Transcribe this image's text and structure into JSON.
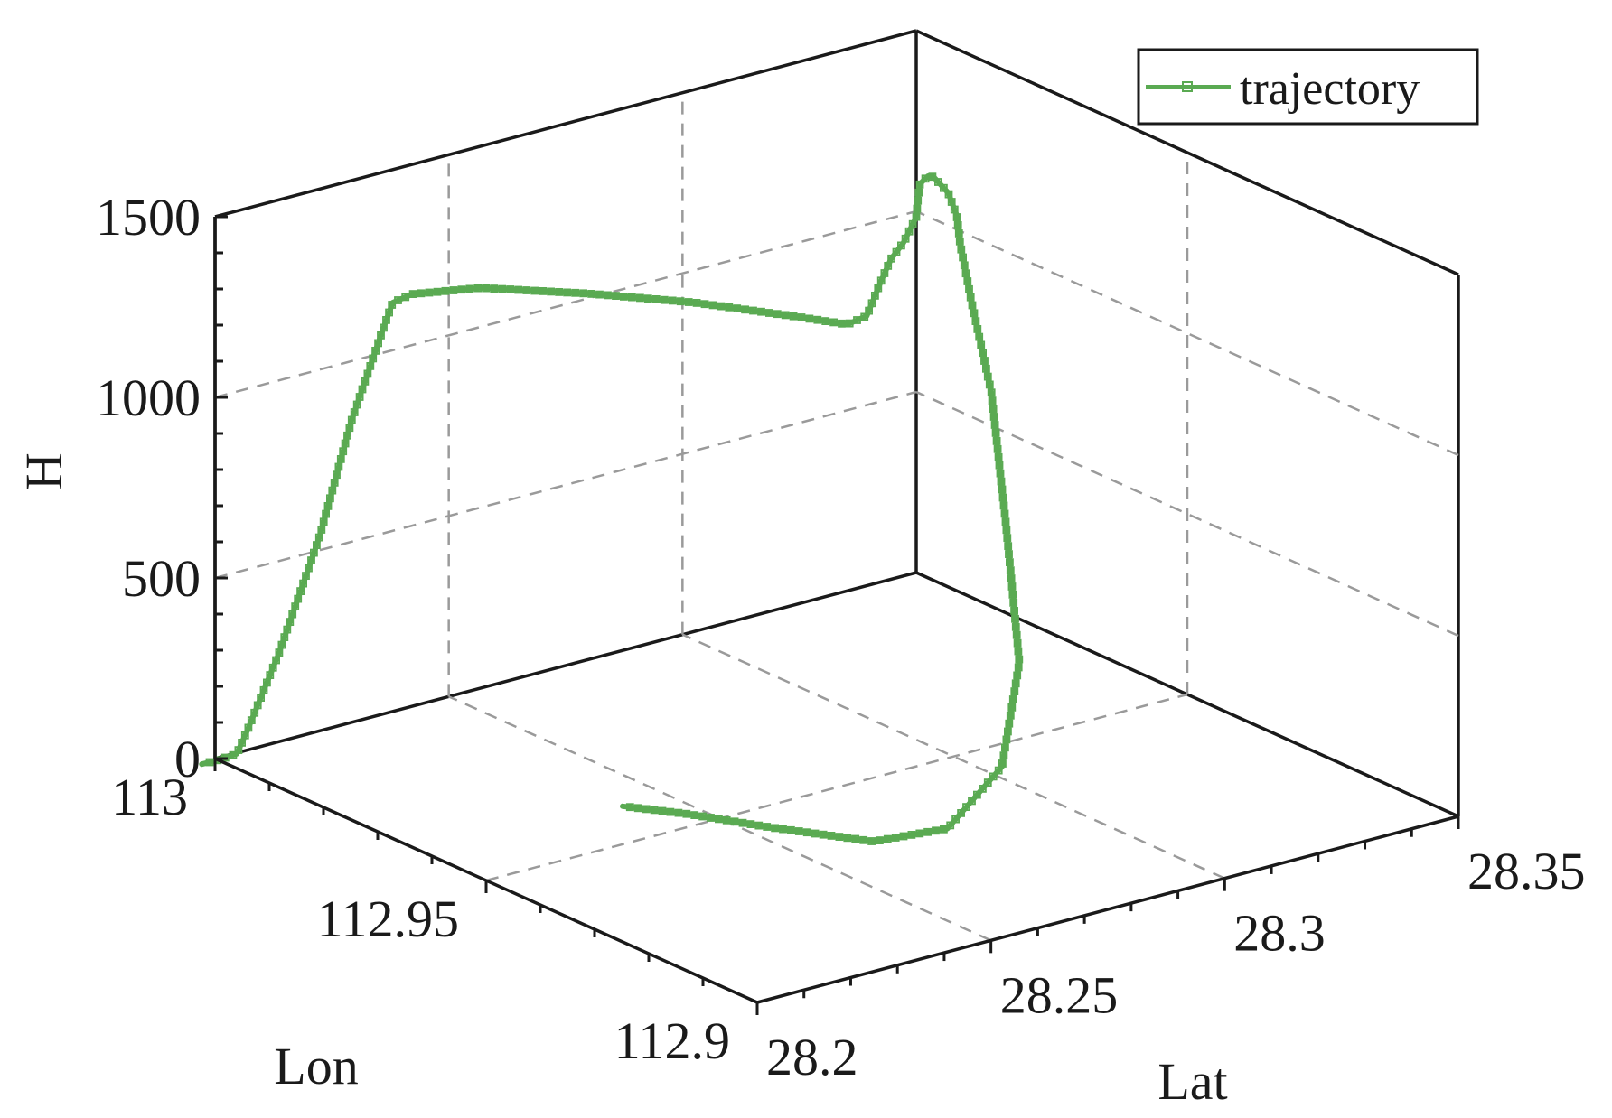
{
  "chart_data": {
    "type": "line3d",
    "legend": {
      "entries": [
        "trajectory"
      ],
      "placement": "top-right"
    },
    "xlabel": "Lon",
    "ylabel": "Lat",
    "zlabel": "H",
    "xlim": [
      112.9,
      113.0
    ],
    "ylim": [
      28.2,
      28.35
    ],
    "zlim": [
      0,
      1500
    ],
    "x_ticks": [
      "112.9",
      "112.95",
      "113"
    ],
    "y_ticks": [
      "28.2",
      "28.25",
      "28.3",
      "28.35"
    ],
    "z_ticks": [
      "0",
      "500",
      "1000",
      "1500"
    ],
    "grid": true,
    "series": [
      {
        "name": "trajectory",
        "color": "#5aaa52",
        "marker": "square",
        "points": [
          [
            112.999,
            28.196,
            5
          ],
          [
            112.998,
            28.198,
            15
          ],
          [
            112.996,
            28.2,
            40
          ],
          [
            112.994,
            28.2,
            120
          ],
          [
            112.99,
            28.202,
            350
          ],
          [
            112.985,
            28.205,
            700
          ],
          [
            112.98,
            28.206,
            1050
          ],
          [
            112.976,
            28.208,
            1320
          ],
          [
            112.975,
            28.209,
            1400
          ],
          [
            112.974,
            28.212,
            1420
          ],
          [
            112.97,
            28.222,
            1430
          ],
          [
            112.962,
            28.236,
            1420
          ],
          [
            112.955,
            28.25,
            1395
          ],
          [
            112.947,
            28.262,
            1370
          ],
          [
            112.942,
            28.268,
            1360
          ],
          [
            112.941,
            28.271,
            1380
          ],
          [
            112.94,
            28.273,
            1480
          ],
          [
            112.94,
            28.275,
            1530
          ],
          [
            112.942,
            28.28,
            1545
          ],
          [
            112.95,
            28.292,
            1520
          ],
          [
            112.96,
            28.304,
            1465
          ],
          [
            112.97,
            28.316,
            1395
          ],
          [
            112.978,
            28.327,
            1325
          ],
          [
            112.983,
            28.334,
            1265
          ],
          [
            112.982,
            28.336,
            1220
          ],
          [
            112.977,
            28.332,
            1205
          ],
          [
            112.966,
            28.32,
            1240
          ],
          [
            112.951,
            28.305,
            1235
          ],
          [
            112.937,
            28.293,
            1120
          ],
          [
            112.923,
            28.28,
            880
          ],
          [
            112.912,
            28.27,
            620
          ],
          [
            112.904,
            28.257,
            430
          ],
          [
            112.902,
            28.243,
            320
          ],
          [
            112.907,
            28.233,
            285
          ],
          [
            112.917,
            28.223,
            290
          ],
          [
            112.925,
            28.214,
            305
          ],
          [
            112.93,
            28.206,
            320
          ]
        ]
      }
    ]
  }
}
